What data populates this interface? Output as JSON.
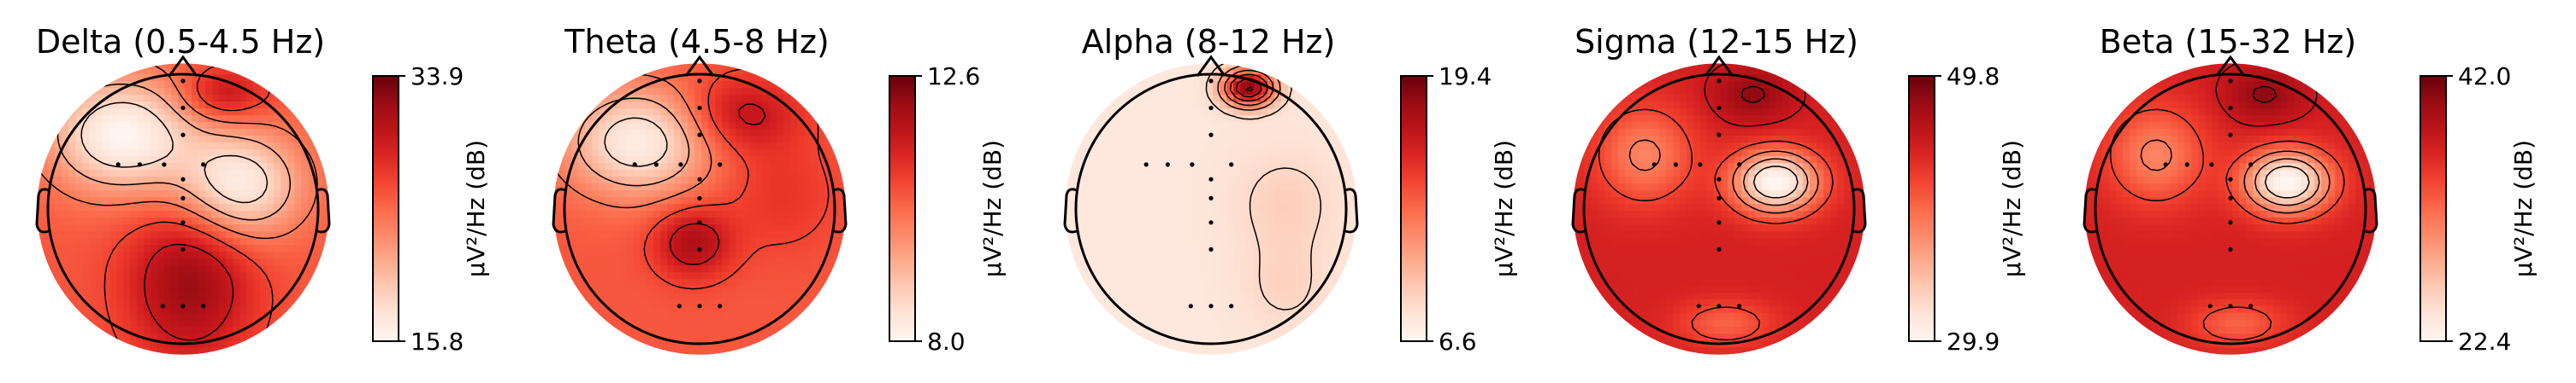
{
  "chart_data": [
    {
      "type": "heatmap",
      "subtype": "topomap",
      "title": "Delta (0.5-4.5 Hz)",
      "colorbar": {
        "label": "µV²/Hz (dB)",
        "min_label": "15.8",
        "max_label": "33.9",
        "vmin": 15.8,
        "vmax": 33.9,
        "colormap": "Reds"
      },
      "base_level": 0.55,
      "blobs": [
        {
          "x": -0.45,
          "y": 0.55,
          "amp": -0.55,
          "sx": 0.38,
          "sy": 0.3
        },
        {
          "x": 0.42,
          "y": 0.18,
          "amp": -0.5,
          "sx": 0.32,
          "sy": 0.28
        },
        {
          "x": 0.05,
          "y": -0.55,
          "amp": 0.35,
          "sx": 0.32,
          "sy": 0.4
        },
        {
          "x": 0.3,
          "y": 0.85,
          "amp": 0.25,
          "sx": 0.22,
          "sy": 0.14
        }
      ]
    },
    {
      "type": "heatmap",
      "subtype": "topomap",
      "title": "Theta (4.5-8 Hz)",
      "colorbar": {
        "label": "µV²/Hz (dB)",
        "min_label": "8.0",
        "max_label": "12.6",
        "vmin": 8.0,
        "vmax": 12.6,
        "colormap": "Reds"
      },
      "base_level": 0.55,
      "blobs": [
        {
          "x": -0.45,
          "y": 0.5,
          "amp": -0.5,
          "sx": 0.38,
          "sy": 0.28
        },
        {
          "x": 0.3,
          "y": 0.7,
          "amp": 0.25,
          "sx": 0.3,
          "sy": 0.2
        },
        {
          "x": -0.05,
          "y": -0.25,
          "amp": 0.3,
          "sx": 0.2,
          "sy": 0.18
        },
        {
          "x": 0.6,
          "y": 0.1,
          "amp": 0.1,
          "sx": 0.3,
          "sy": 0.3
        }
      ]
    },
    {
      "type": "heatmap",
      "subtype": "topomap",
      "title": "Alpha (8-12 Hz)",
      "colorbar": {
        "label": "µV²/Hz (dB)",
        "min_label": "6.6",
        "max_label": "19.4",
        "vmin": 6.6,
        "vmax": 19.4,
        "colormap": "Reds"
      },
      "base_level": 0.08,
      "blobs": [
        {
          "x": 0.28,
          "y": 0.9,
          "amp": 0.85,
          "sx": 0.14,
          "sy": 0.1
        },
        {
          "x": 0.55,
          "y": 0.05,
          "amp": 0.1,
          "sx": 0.3,
          "sy": 0.3
        },
        {
          "x": 0.55,
          "y": -0.6,
          "amp": 0.08,
          "sx": 0.25,
          "sy": 0.25
        }
      ]
    },
    {
      "type": "heatmap",
      "subtype": "topomap",
      "title": "Sigma (12-15 Hz)",
      "colorbar": {
        "label": "µV²/Hz (dB)",
        "min_label": "29.9",
        "max_label": "49.8",
        "vmin": 29.9,
        "vmax": 49.8,
        "colormap": "Reds"
      },
      "base_level": 0.72,
      "blobs": [
        {
          "x": 0.42,
          "y": 0.2,
          "amp": -0.75,
          "sx": 0.22,
          "sy": 0.16
        },
        {
          "x": -0.55,
          "y": 0.4,
          "amp": -0.3,
          "sx": 0.25,
          "sy": 0.25
        },
        {
          "x": 0.05,
          "y": -0.85,
          "amp": -0.2,
          "sx": 0.25,
          "sy": 0.12
        },
        {
          "x": 0.25,
          "y": 0.85,
          "amp": 0.2,
          "sx": 0.2,
          "sy": 0.14
        }
      ]
    },
    {
      "type": "heatmap",
      "subtype": "topomap",
      "title": "Beta (15-32 Hz)",
      "colorbar": {
        "label": "µV²/Hz (dB)",
        "min_label": "22.4",
        "max_label": "42.0",
        "vmin": 22.4,
        "vmax": 42.0,
        "colormap": "Reds"
      },
      "base_level": 0.72,
      "blobs": [
        {
          "x": 0.42,
          "y": 0.2,
          "amp": -0.75,
          "sx": 0.22,
          "sy": 0.16
        },
        {
          "x": -0.55,
          "y": 0.4,
          "amp": -0.3,
          "sx": 0.25,
          "sy": 0.25
        },
        {
          "x": 0.05,
          "y": -0.85,
          "amp": -0.2,
          "sx": 0.25,
          "sy": 0.12
        },
        {
          "x": 0.25,
          "y": 0.85,
          "amp": 0.2,
          "sx": 0.2,
          "sy": 0.14
        }
      ]
    }
  ]
}
